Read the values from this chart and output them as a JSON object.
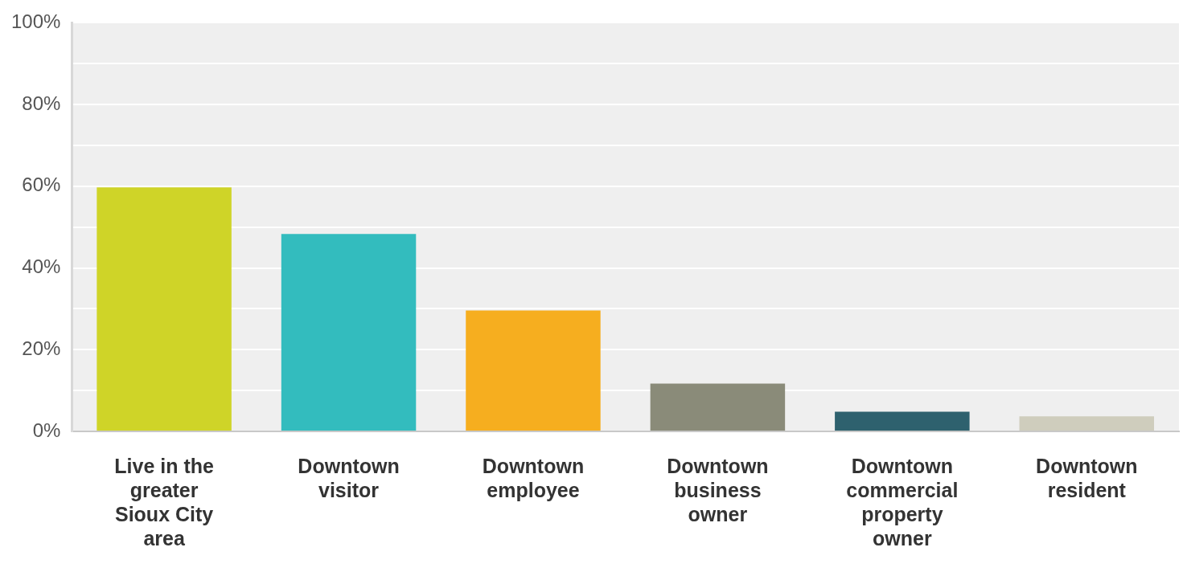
{
  "chart_data": {
    "type": "bar",
    "categories": [
      "Live in the greater Sioux City area",
      "Downtown visitor",
      "Downtown employee",
      "Downtown business owner",
      "Downtown commercial property owner",
      "Downtown resident"
    ],
    "values": [
      59.7,
      48.3,
      29.6,
      11.7,
      4.8,
      3.7
    ],
    "colors": [
      "#cfd428",
      "#33bcbe",
      "#f6ae1f",
      "#8a8b79",
      "#2e616e",
      "#cfcdbd"
    ],
    "ylim": [
      0,
      100
    ],
    "yticks": [
      {
        "value": 0,
        "label": "0%"
      },
      {
        "value": 10,
        "label": null
      },
      {
        "value": 20,
        "label": "20%"
      },
      {
        "value": 30,
        "label": null
      },
      {
        "value": 40,
        "label": "40%"
      },
      {
        "value": 50,
        "label": null
      },
      {
        "value": 60,
        "label": "60%"
      },
      {
        "value": 70,
        "label": null
      },
      {
        "value": 80,
        "label": "80%"
      },
      {
        "value": 90,
        "label": null
      },
      {
        "value": 100,
        "label": "100%"
      }
    ],
    "grid": "y",
    "legend": false
  }
}
